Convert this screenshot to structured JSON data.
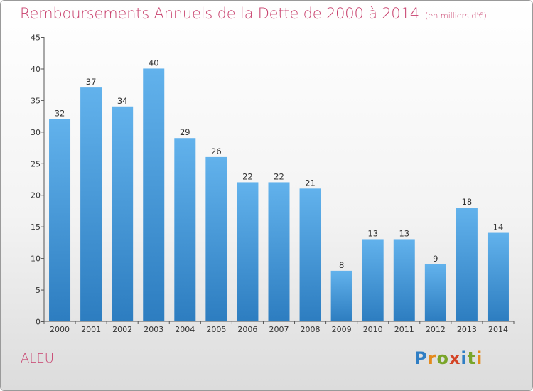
{
  "header": {
    "title": "Remboursements Annuels de la Dette de 2000 à 2014",
    "subtitle": "(en milliers d'€)"
  },
  "footer": {
    "commune": "ALEU",
    "logo": "Proxiti"
  },
  "colors": {
    "title": "#c8406d",
    "bar_top": "#62b2ec",
    "bar_bottom": "#2d7dc0"
  },
  "chart_data": {
    "type": "bar",
    "title": "Remboursements Annuels de la Dette de 2000 à 2014",
    "subtitle": "(en milliers d'€)",
    "xlabel": "",
    "ylabel": "",
    "categories": [
      "2000",
      "2001",
      "2002",
      "2003",
      "2004",
      "2005",
      "2006",
      "2007",
      "2008",
      "2009",
      "2010",
      "2011",
      "2012",
      "2013",
      "2014"
    ],
    "values": [
      32,
      37,
      34,
      40,
      29,
      26,
      22,
      22,
      21,
      8,
      13,
      13,
      9,
      18,
      14
    ],
    "ylim": [
      0,
      45
    ],
    "yticks": [
      0,
      5,
      10,
      15,
      20,
      25,
      30,
      35,
      40,
      45
    ],
    "grid": false,
    "legend": "none"
  }
}
